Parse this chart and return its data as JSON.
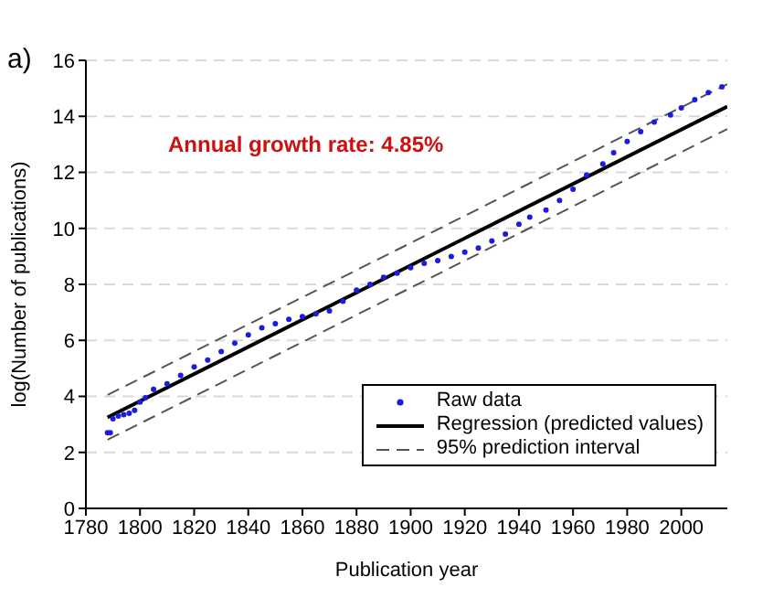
{
  "chart_data": {
    "type": "line",
    "title": "a)",
    "xlabel": "Publication year",
    "ylabel": "log(Number of publications)",
    "annotations": [
      "Annual growth rate: 4.85%"
    ],
    "xlim": [
      1780,
      2017
    ],
    "xticks": [
      1780,
      1800,
      1820,
      1840,
      1860,
      1880,
      1900,
      1920,
      1940,
      1960,
      1980,
      2000
    ],
    "ylim": [
      0,
      16
    ],
    "yticks": [
      0,
      2,
      4,
      6,
      8,
      10,
      12,
      14,
      16
    ],
    "grid": "y",
    "legend": "bottom right",
    "series": [
      {
        "name": "Raw data",
        "type": "scatter",
        "color": "#1c1ce0",
        "marker": "circle",
        "x": [
          1788,
          1789,
          1790,
          1792,
          1794,
          1796,
          1798,
          1800,
          1802,
          1805,
          1810,
          1815,
          1820,
          1825,
          1830,
          1835,
          1840,
          1845,
          1850,
          1855,
          1860,
          1865,
          1870,
          1875,
          1880,
          1885,
          1890,
          1895,
          1900,
          1905,
          1910,
          1915,
          1920,
          1925,
          1930,
          1935,
          1940,
          1944,
          1950,
          1955,
          1960,
          1965,
          1971,
          1975,
          1980,
          1985,
          1990,
          1996,
          2000,
          2005,
          2010,
          2015
        ],
        "values": [
          2.7,
          2.7,
          3.2,
          3.3,
          3.35,
          3.4,
          3.5,
          3.8,
          3.95,
          4.25,
          4.45,
          4.75,
          5.05,
          5.3,
          5.6,
          5.9,
          6.2,
          6.45,
          6.6,
          6.75,
          6.85,
          6.95,
          7.05,
          7.4,
          7.8,
          8.0,
          8.25,
          8.4,
          8.6,
          8.75,
          8.85,
          9.0,
          9.15,
          9.3,
          9.55,
          9.8,
          10.15,
          10.4,
          10.65,
          11.0,
          11.4,
          11.9,
          12.3,
          12.7,
          13.1,
          13.45,
          13.8,
          14.05,
          14.3,
          14.6,
          14.85,
          15.05
        ]
      },
      {
        "name": "Regression (predicted values)",
        "color": "#000000",
        "line_style": "solid",
        "x": [
          1788,
          2017
        ],
        "values": [
          3.25,
          14.35
        ]
      },
      {
        "name": "95% prediction interval",
        "color": "#555555",
        "line_style": "dashed",
        "x": [
          1788,
          2017
        ],
        "values": [
          4.05,
          15.15
        ]
      },
      {
        "color": "#555555",
        "line_style": "dashed",
        "x": [
          1788,
          2017
        ],
        "values": [
          2.45,
          13.55
        ]
      }
    ]
  }
}
